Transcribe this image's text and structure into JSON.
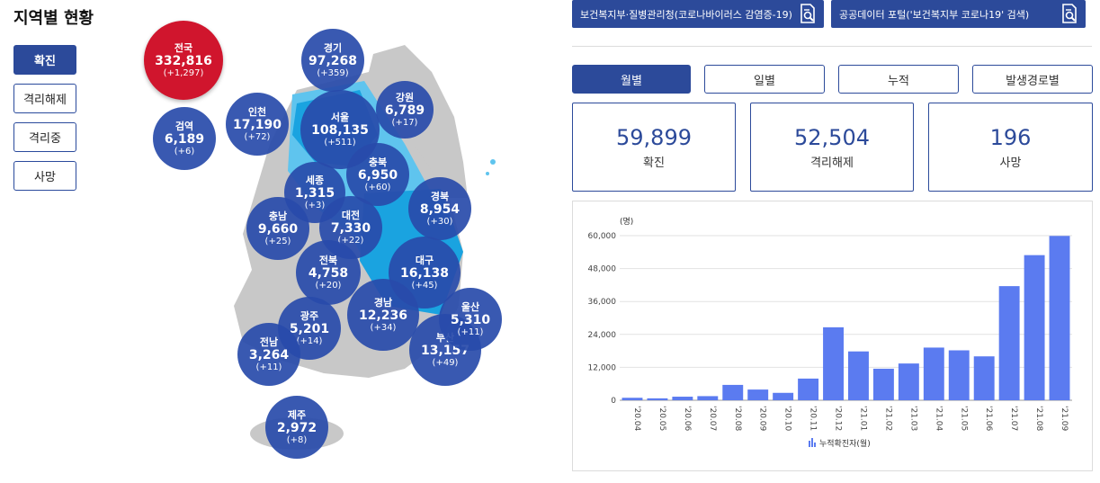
{
  "section_title": "지역별 현황",
  "filters": [
    "확진",
    "격리해제",
    "격리중",
    "사망"
  ],
  "active_filter": 0,
  "regions": [
    {
      "name": "전국",
      "count": "332,816",
      "delta": "(+1,297)"
    },
    {
      "name": "경기",
      "count": "97,268",
      "delta": "(+359)"
    },
    {
      "name": "강원",
      "count": "6,789",
      "delta": "(+17)"
    },
    {
      "name": "인천",
      "count": "17,190",
      "delta": "(+72)"
    },
    {
      "name": "서울",
      "count": "108,135",
      "delta": "(+511)"
    },
    {
      "name": "검역",
      "count": "6,189",
      "delta": "(+6)"
    },
    {
      "name": "충북",
      "count": "6,950",
      "delta": "(+60)"
    },
    {
      "name": "세종",
      "count": "1,315",
      "delta": "(+3)"
    },
    {
      "name": "경북",
      "count": "8,954",
      "delta": "(+30)"
    },
    {
      "name": "충남",
      "count": "9,660",
      "delta": "(+25)"
    },
    {
      "name": "대전",
      "count": "7,330",
      "delta": "(+22)"
    },
    {
      "name": "대구",
      "count": "16,138",
      "delta": "(+45)"
    },
    {
      "name": "전북",
      "count": "4,758",
      "delta": "(+20)"
    },
    {
      "name": "울산",
      "count": "5,310",
      "delta": "(+11)"
    },
    {
      "name": "경남",
      "count": "12,236",
      "delta": "(+34)"
    },
    {
      "name": "광주",
      "count": "5,201",
      "delta": "(+14)"
    },
    {
      "name": "부산",
      "count": "13,157",
      "delta": "(+49)"
    },
    {
      "name": "전남",
      "count": "3,264",
      "delta": "(+11)"
    },
    {
      "name": "제주",
      "count": "2,972",
      "delta": "(+8)"
    }
  ],
  "links": [
    {
      "label": "보건복지부·질병관리청(코로나바이러스 감염증-19)",
      "icon": "document-search-icon"
    },
    {
      "label": "공공데이터 포털('보건복지부 코로나19' 검색)",
      "icon": "document-search-icon"
    }
  ],
  "tabs": [
    "월별",
    "일별",
    "누적",
    "발생경로별"
  ],
  "active_tab": 0,
  "stats": [
    {
      "value": "59,899",
      "label": "확진"
    },
    {
      "value": "52,504",
      "label": "격리해제"
    },
    {
      "value": "196",
      "label": "사망"
    }
  ],
  "colors": {
    "primary": "#2c4a9a",
    "national": "#d0152d",
    "bar": "#5b7bf0",
    "map_outer": "#c8c8c8",
    "map_light": "#5fc4ee",
    "map_mid": "#1aa3e0"
  },
  "chart_data": {
    "type": "bar",
    "unit_label": "(명)",
    "categories": [
      "'20.04",
      "'20.05",
      "'20.06",
      "'20.07",
      "'20.08",
      "'20.09",
      "'20.10",
      "'20.11",
      "'20.12",
      "'21.01",
      "'21.02",
      "'21.03",
      "'21.04",
      "'21.05",
      "'21.06",
      "'21.07",
      "'21.08",
      "'21.09"
    ],
    "series": [
      {
        "name": "누적확진자(월)",
        "values": [
          900,
          700,
          1300,
          1500,
          5600,
          3900,
          2700,
          7900,
          26600,
          17800,
          11500,
          13400,
          19200,
          18200,
          16000,
          41600,
          52900,
          59900
        ]
      }
    ],
    "yticks": [
      "0",
      "12,000",
      "24,000",
      "36,000",
      "48,000",
      "60,000"
    ],
    "ylim": [
      0,
      60000
    ],
    "grid": true,
    "legend_position": "bottom-center"
  }
}
